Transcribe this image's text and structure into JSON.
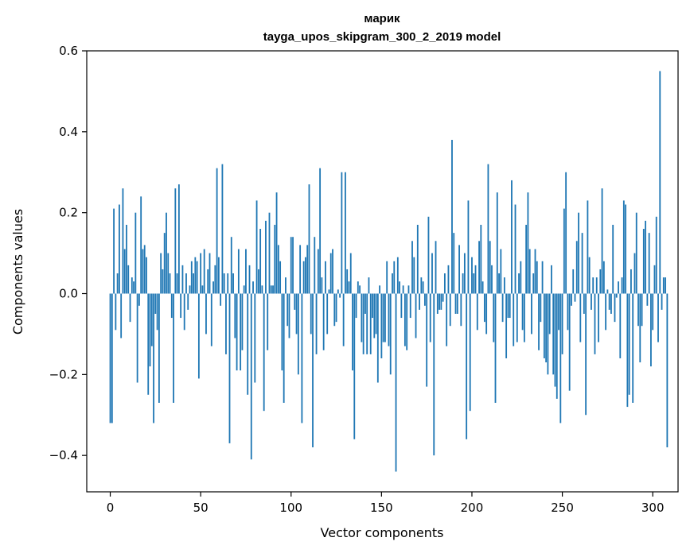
{
  "chart_data": {
    "type": "bar",
    "title": "марик",
    "subtitle": "tayga_upos_skipgram_300_2_2019 model",
    "xlabel": "Vector components",
    "ylabel": "Components values",
    "xlim": [
      -13,
      314
    ],
    "ylim": [
      -0.49,
      0.6
    ],
    "xticks": [
      0,
      50,
      100,
      150,
      200,
      250,
      300
    ],
    "xtick_labels": [
      "0",
      "50",
      "100",
      "150",
      "200",
      "250",
      "300"
    ],
    "yticks": [
      0.6,
      0.4,
      0.2,
      0.0,
      -0.2,
      -0.4
    ],
    "ytick_labels": [
      "0.6",
      "0.4",
      "0.2",
      "0.0",
      "−0.2",
      "−0.4"
    ],
    "bar_color": "#1f77b4",
    "grid": false,
    "series": [
      {
        "name": "марик",
        "values": [
          -0.32,
          -0.32,
          0.21,
          -0.09,
          0.05,
          0.22,
          -0.11,
          0.26,
          0.11,
          0.17,
          0.07,
          -0.07,
          0.04,
          0.03,
          0.2,
          -0.22,
          -0.03,
          0.24,
          0.11,
          0.12,
          0.09,
          -0.25,
          -0.18,
          -0.13,
          -0.32,
          -0.05,
          -0.09,
          -0.27,
          0.1,
          0.06,
          0.15,
          0.2,
          0.1,
          0.05,
          -0.06,
          -0.27,
          0.26,
          0.05,
          0.27,
          -0.06,
          0.07,
          -0.09,
          0.05,
          -0.04,
          0.02,
          0.08,
          0.05,
          0.09,
          0.08,
          -0.21,
          0.1,
          0.02,
          0.11,
          -0.1,
          0.06,
          0.1,
          -0.13,
          0.03,
          0.07,
          0.31,
          0.09,
          -0.03,
          0.32,
          0.05,
          -0.15,
          0.05,
          -0.37,
          0.14,
          0.05,
          -0.11,
          -0.19,
          0.11,
          -0.19,
          -0.14,
          0.02,
          0.11,
          -0.25,
          0.07,
          -0.41,
          0.03,
          -0.22,
          0.23,
          0.06,
          0.16,
          0.02,
          -0.29,
          0.18,
          -0.14,
          0.2,
          0.02,
          0.02,
          0.17,
          0.25,
          0.12,
          0.08,
          -0.19,
          -0.27,
          0.04,
          -0.08,
          -0.11,
          0.14,
          0.14,
          -0.04,
          -0.1,
          -0.2,
          0.12,
          -0.32,
          0.08,
          0.09,
          0.12,
          0.27,
          -0.1,
          -0.38,
          0.14,
          -0.15,
          0.11,
          0.31,
          0.04,
          -0.14,
          0.08,
          -0.1,
          0.01,
          0.1,
          0.11,
          -0.08,
          -0.07,
          0.01,
          -0.01,
          0.3,
          -0.13,
          0.3,
          0.06,
          0.03,
          0.1,
          -0.19,
          -0.36,
          -0.06,
          0.03,
          0.02,
          -0.12,
          -0.15,
          -0.05,
          -0.15,
          0.04,
          -0.15,
          -0.06,
          -0.11,
          -0.1,
          -0.22,
          0.02,
          -0.16,
          -0.12,
          -0.12,
          0.08,
          -0.13,
          -0.2,
          0.05,
          0.08,
          -0.44,
          0.09,
          0.03,
          -0.06,
          0.02,
          -0.13,
          -0.14,
          0.02,
          -0.06,
          0.13,
          0.09,
          -0.11,
          0.17,
          -0.04,
          0.04,
          0.03,
          -0.03,
          -0.23,
          0.19,
          -0.12,
          0.1,
          -0.4,
          0.13,
          -0.05,
          -0.04,
          -0.04,
          -0.02,
          0.05,
          -0.13,
          0.07,
          -0.08,
          0.38,
          0.15,
          -0.05,
          -0.05,
          0.12,
          -0.08,
          0.05,
          0.1,
          -0.36,
          0.23,
          -0.29,
          0.09,
          0.05,
          0.07,
          -0.09,
          0.13,
          0.17,
          0.03,
          -0.07,
          -0.1,
          0.32,
          0.13,
          0.07,
          -0.12,
          -0.27,
          0.25,
          0.05,
          0.11,
          -0.07,
          0.04,
          -0.16,
          -0.06,
          -0.06,
          0.28,
          -0.13,
          0.22,
          -0.12,
          0.05,
          0.08,
          -0.09,
          -0.12,
          0.17,
          0.25,
          0.11,
          -0.1,
          0.05,
          0.11,
          0.08,
          -0.14,
          -0.07,
          0.08,
          -0.16,
          -0.17,
          -0.2,
          -0.1,
          0.07,
          -0.2,
          -0.23,
          -0.26,
          -0.09,
          -0.32,
          -0.15,
          0.21,
          0.3,
          -0.09,
          -0.24,
          -0.03,
          0.06,
          -0.02,
          0.13,
          0.2,
          -0.12,
          0.15,
          -0.05,
          -0.3,
          0.23,
          0.09,
          -0.04,
          0.04,
          -0.15,
          0.04,
          -0.12,
          0.06,
          0.26,
          0.08,
          -0.09,
          0.01,
          -0.04,
          -0.05,
          0.17,
          -0.07,
          -0.01,
          0.03,
          -0.16,
          0.04,
          0.23,
          0.22,
          -0.28,
          -0.25,
          0.06,
          -0.27,
          0.1,
          0.2,
          -0.08,
          -0.17,
          -0.08,
          0.16,
          0.18,
          -0.03,
          0.15,
          -0.18,
          -0.09,
          0.07,
          0.19,
          -0.12,
          0.55,
          -0.04,
          0.04,
          0.04,
          -0.38
        ]
      }
    ]
  }
}
